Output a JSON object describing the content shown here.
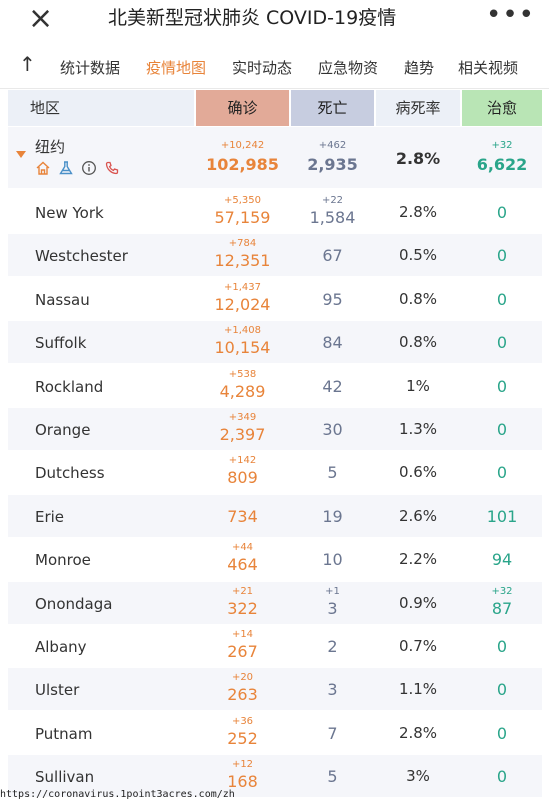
{
  "header": {
    "close_icon": "×",
    "title": "北美新型冠状肺炎 COVID-19疫情",
    "more_icon": "•••"
  },
  "tabs": {
    "up_icon": "↑",
    "items": [
      "统计数据",
      "疫情地图",
      "实时动态",
      "应急物资",
      "趋势",
      "相关视频"
    ],
    "active": "疫情地图"
  },
  "table_headers": {
    "region": "地区",
    "confirmed": "确诊",
    "deaths": "死亡",
    "fatality_rate": "病死率",
    "recovered": "治愈"
  },
  "total": {
    "name": "纽约",
    "confirmed_delta": "+10,242",
    "confirmed": "102,985",
    "deaths_delta": "+462",
    "deaths": "2,935",
    "fatality_rate": "2.8%",
    "recovered_delta": "+32",
    "recovered": "6,622",
    "icons": [
      "home-icon",
      "flask-icon",
      "info-icon",
      "phone-icon"
    ]
  },
  "rows": [
    {
      "name": "New York",
      "confirmed_delta": "+5,350",
      "confirmed": "57,159",
      "deaths_delta": "+22",
      "deaths": "1,584",
      "fatality_rate": "2.8%",
      "recovered_delta": "",
      "recovered": "0"
    },
    {
      "name": "Westchester",
      "confirmed_delta": "+784",
      "confirmed": "12,351",
      "deaths_delta": "",
      "deaths": "67",
      "fatality_rate": "0.5%",
      "recovered_delta": "",
      "recovered": "0"
    },
    {
      "name": "Nassau",
      "confirmed_delta": "+1,437",
      "confirmed": "12,024",
      "deaths_delta": "",
      "deaths": "95",
      "fatality_rate": "0.8%",
      "recovered_delta": "",
      "recovered": "0"
    },
    {
      "name": "Suffolk",
      "confirmed_delta": "+1,408",
      "confirmed": "10,154",
      "deaths_delta": "",
      "deaths": "84",
      "fatality_rate": "0.8%",
      "recovered_delta": "",
      "recovered": "0"
    },
    {
      "name": "Rockland",
      "confirmed_delta": "+538",
      "confirmed": "4,289",
      "deaths_delta": "",
      "deaths": "42",
      "fatality_rate": "1%",
      "recovered_delta": "",
      "recovered": "0"
    },
    {
      "name": "Orange",
      "confirmed_delta": "+349",
      "confirmed": "2,397",
      "deaths_delta": "",
      "deaths": "30",
      "fatality_rate": "1.3%",
      "recovered_delta": "",
      "recovered": "0"
    },
    {
      "name": "Dutchess",
      "confirmed_delta": "+142",
      "confirmed": "809",
      "deaths_delta": "",
      "deaths": "5",
      "fatality_rate": "0.6%",
      "recovered_delta": "",
      "recovered": "0"
    },
    {
      "name": "Erie",
      "confirmed_delta": "",
      "confirmed": "734",
      "deaths_delta": "",
      "deaths": "19",
      "fatality_rate": "2.6%",
      "recovered_delta": "",
      "recovered": "101"
    },
    {
      "name": "Monroe",
      "confirmed_delta": "+44",
      "confirmed": "464",
      "deaths_delta": "",
      "deaths": "10",
      "fatality_rate": "2.2%",
      "recovered_delta": "",
      "recovered": "94"
    },
    {
      "name": "Onondaga",
      "confirmed_delta": "+21",
      "confirmed": "322",
      "deaths_delta": "+1",
      "deaths": "3",
      "fatality_rate": "0.9%",
      "recovered_delta": "+32",
      "recovered": "87"
    },
    {
      "name": "Albany",
      "confirmed_delta": "+14",
      "confirmed": "267",
      "deaths_delta": "",
      "deaths": "2",
      "fatality_rate": "0.7%",
      "recovered_delta": "",
      "recovered": "0"
    },
    {
      "name": "Ulster",
      "confirmed_delta": "+20",
      "confirmed": "263",
      "deaths_delta": "",
      "deaths": "3",
      "fatality_rate": "1.1%",
      "recovered_delta": "",
      "recovered": "0"
    },
    {
      "name": "Putnam",
      "confirmed_delta": "+36",
      "confirmed": "252",
      "deaths_delta": "",
      "deaths": "7",
      "fatality_rate": "2.8%",
      "recovered_delta": "",
      "recovered": "0"
    },
    {
      "name": "Sullivan",
      "confirmed_delta": "+12",
      "confirmed": "168",
      "deaths_delta": "",
      "deaths": "5",
      "fatality_rate": "3%",
      "recovered_delta": "",
      "recovered": "0"
    }
  ],
  "footer": {
    "source": "https://coronavirus.1point3acres.com/zh"
  },
  "colors": {
    "accent": "#e8843a",
    "confirmed_header": "#e2aa98",
    "deaths_header": "#c7cde0",
    "recovered_header": "#b9e5b5",
    "recovered_text": "#2aa58a",
    "deaths_text": "#6b7690"
  }
}
